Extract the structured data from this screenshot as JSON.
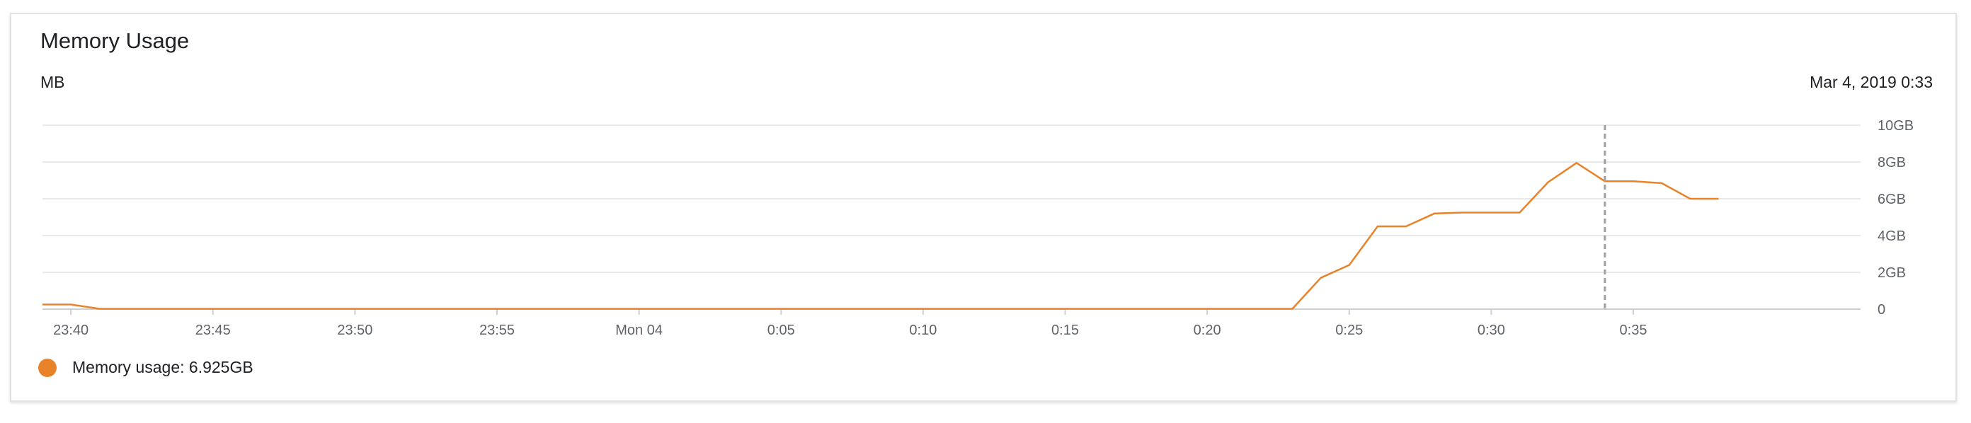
{
  "card": {
    "title": "Memory Usage",
    "unit": "MB",
    "hover_time": "Mar 4, 2019 0:33"
  },
  "legend": {
    "label": "Memory usage: 6.925GB",
    "color": "#e8832a"
  },
  "chart_data": {
    "type": "line",
    "title": "Memory Usage",
    "ylabel": "MB",
    "x_tick_labels": [
      "23:40",
      "23:45",
      "23:50",
      "23:55",
      "Mon 04",
      "0:05",
      "0:10",
      "0:15",
      "0:20",
      "0:25",
      "0:30",
      "0:35"
    ],
    "y_tick_labels": [
      "0",
      "2GB",
      "4GB",
      "6GB",
      "8GB",
      "10GB"
    ],
    "ylim": [
      0,
      10
    ],
    "xlim": [
      "23:39",
      "0:43"
    ],
    "grid": true,
    "legend_position": "bottom-left",
    "hover_marker": "0:34",
    "series": [
      {
        "name": "Memory usage",
        "color": "#e8832a",
        "points": [
          [
            "23:39",
            0.25
          ],
          [
            "23:40",
            0.25
          ],
          [
            "23:41",
            0.02
          ],
          [
            "23:45",
            0.02
          ],
          [
            "23:50",
            0.02
          ],
          [
            "23:55",
            0.02
          ],
          [
            "0:00",
            0.02
          ],
          [
            "0:05",
            0.02
          ],
          [
            "0:10",
            0.02
          ],
          [
            "0:15",
            0.02
          ],
          [
            "0:20",
            0.02
          ],
          [
            "0:23",
            0.02
          ],
          [
            "0:24",
            1.7
          ],
          [
            "0:25",
            2.4
          ],
          [
            "0:26",
            4.5
          ],
          [
            "0:27",
            4.5
          ],
          [
            "0:28",
            5.2
          ],
          [
            "0:29",
            5.25
          ],
          [
            "0:30",
            5.25
          ],
          [
            "0:31",
            5.25
          ],
          [
            "0:32",
            6.9
          ],
          [
            "0:33",
            7.95
          ],
          [
            "0:34",
            6.95
          ],
          [
            "0:35",
            6.95
          ],
          [
            "0:36",
            6.85
          ],
          [
            "0:37",
            6.0
          ],
          [
            "0:38",
            6.0
          ]
        ]
      }
    ]
  }
}
